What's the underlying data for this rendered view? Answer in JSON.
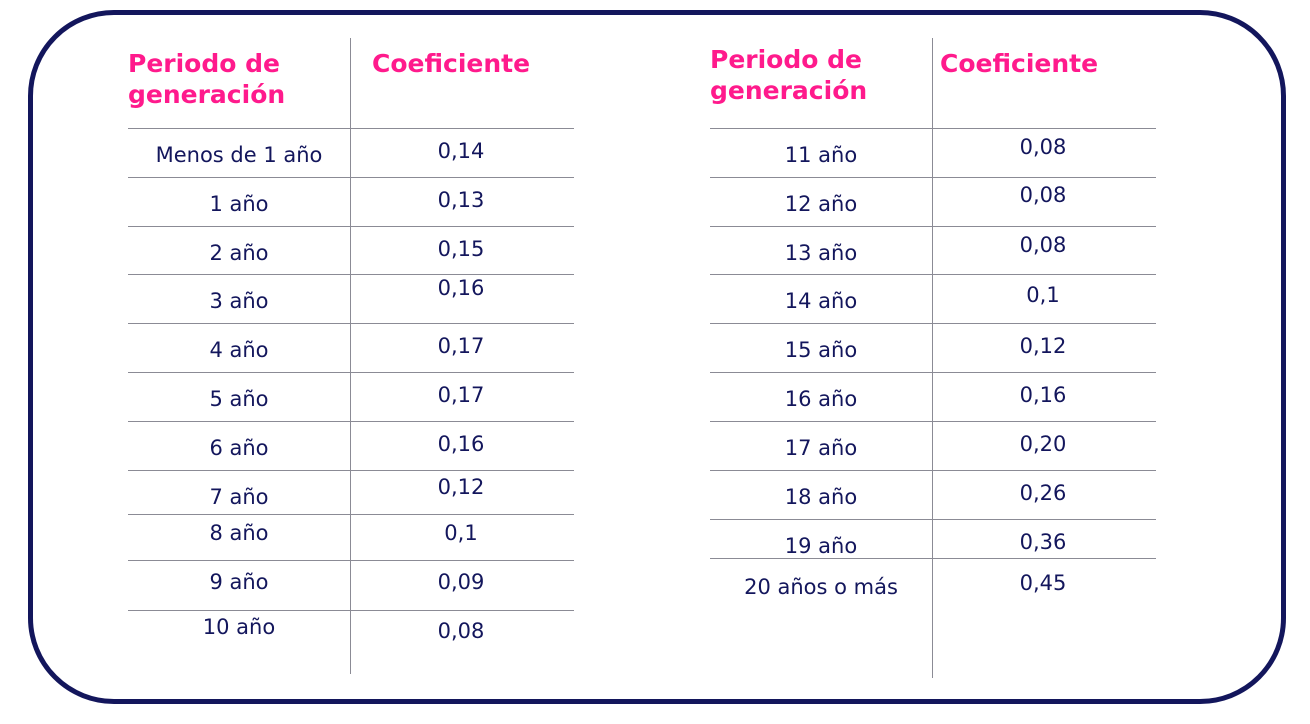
{
  "colors": {
    "frame": "#13165c",
    "header": "#ff1a8c",
    "text": "#13165c",
    "rule": "#8b8b95"
  },
  "left_table": {
    "header_period": "Periodo de\ngeneración",
    "header_coef": "Coeficiente",
    "rows": [
      {
        "period": "Menos de 1 año",
        "coef": "0,14"
      },
      {
        "period": "1 año",
        "coef": "0,13"
      },
      {
        "period": "2 año",
        "coef": "0,15"
      },
      {
        "period": "3 año",
        "coef": "0,16"
      },
      {
        "period": "4 año",
        "coef": "0,17"
      },
      {
        "period": "5 año",
        "coef": "0,17"
      },
      {
        "period": "6 año",
        "coef": "0,16"
      },
      {
        "period": "7 año",
        "coef": "0,12"
      },
      {
        "period": "8 año",
        "coef": "0,1"
      },
      {
        "period": "9 año",
        "coef": "0,09"
      },
      {
        "period": "10 año",
        "coef": "0,08"
      }
    ]
  },
  "right_table": {
    "header_period": "Periodo de\ngeneración",
    "header_coef": "Coeficiente",
    "rows": [
      {
        "period": "11 año",
        "coef": "0,08"
      },
      {
        "period": "12 año",
        "coef": "0,08"
      },
      {
        "period": "13 año",
        "coef": "0,08"
      },
      {
        "period": "14 año",
        "coef": "0,1"
      },
      {
        "period": "15 año",
        "coef": "0,12"
      },
      {
        "period": "16 año",
        "coef": "0,16"
      },
      {
        "period": "17 año",
        "coef": "0,20"
      },
      {
        "period": "18 año",
        "coef": "0,26"
      },
      {
        "period": "19 año",
        "coef": "0,36"
      },
      {
        "period": "20 años o más",
        "coef": "0,45"
      }
    ]
  }
}
